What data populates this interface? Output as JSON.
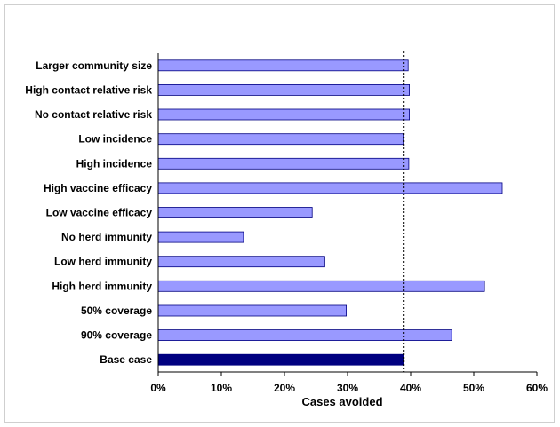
{
  "chart_data": {
    "type": "bar",
    "orientation": "horizontal",
    "title": "",
    "xlabel": "Cases avoided",
    "ylabel": "",
    "xlim": [
      0,
      0.6
    ],
    "x_ticks": [
      0,
      0.1,
      0.2,
      0.3,
      0.4,
      0.5,
      0.6
    ],
    "x_tick_labels": [
      "0%",
      "10%",
      "20%",
      "30%",
      "40%",
      "50%",
      "60%"
    ],
    "grid": false,
    "legend": "none",
    "categories": [
      "Larger community size",
      "High contact relative risk",
      "No contact relative risk",
      "Low incidence",
      "High incidence",
      "High vaccine efficacy",
      "Low vaccine efficacy",
      "No herd immunity",
      "Low herd immunity",
      "High herd immunity",
      "50% coverage",
      "90% coverage",
      "Base case"
    ],
    "values": [
      0.396,
      0.398,
      0.398,
      0.388,
      0.397,
      0.545,
      0.244,
      0.135,
      0.264,
      0.517,
      0.298,
      0.465,
      0.389
    ],
    "reference_line": {
      "value": 0.389,
      "style": "dotted"
    },
    "colors": {
      "bar_fill": "#9999ff",
      "bar_stroke": "#000080",
      "base_case_fill": "#000080",
      "axis": "#000000",
      "reference_line": "#000000"
    }
  }
}
